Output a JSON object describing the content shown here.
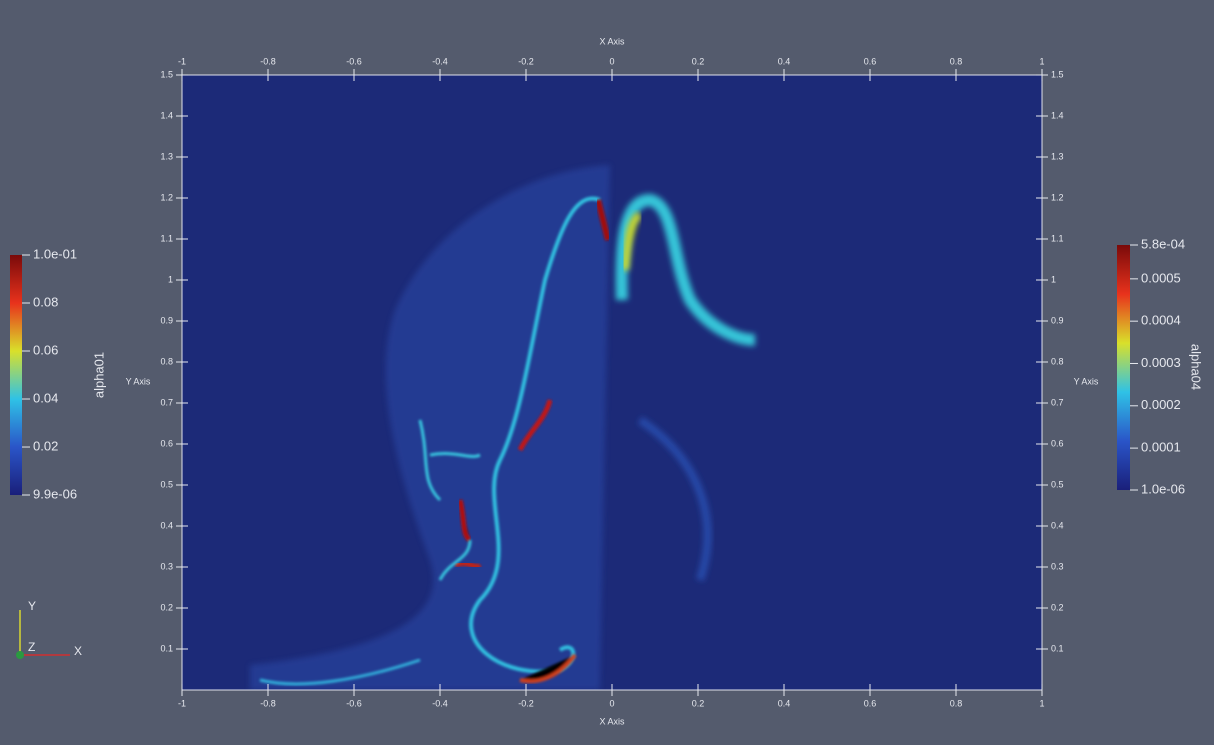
{
  "x_axis": {
    "title": "X Axis",
    "lim": [
      -1,
      1
    ],
    "ticks": [
      -1,
      -0.8,
      -0.6,
      -0.4,
      -0.2,
      0,
      0.2,
      0.4,
      0.6,
      0.8,
      1
    ]
  },
  "y_axis": {
    "title": "Y Axis",
    "lim": [
      0,
      1.5
    ],
    "ticks": [
      0.1,
      0.2,
      0.3,
      0.4,
      0.5,
      0.6,
      0.7,
      0.8,
      0.9,
      1,
      1.1,
      1.2,
      1.3,
      1.4,
      1.5
    ]
  },
  "colorbars": [
    {
      "title": "alpha01",
      "lim": [
        9.9e-06,
        0.1
      ],
      "ticks": [
        {
          "value": 0.1,
          "label": "1.0e-01"
        },
        0.08,
        0.06,
        0.04,
        0.02,
        {
          "value": 9.9e-06,
          "label": "9.9e-06"
        }
      ]
    },
    {
      "title": "alpha04",
      "lim": [
        1e-06,
        0.00058
      ],
      "ticks": [
        {
          "value": 0.00058,
          "label": "5.8e-04"
        },
        0.0005,
        0.0004,
        0.0003,
        0.0002,
        0.0001,
        {
          "value": 1e-06,
          "label": "1.0e-06"
        }
      ]
    }
  ],
  "triad": {
    "x": "X",
    "y": "Y",
    "z": "Z"
  }
}
